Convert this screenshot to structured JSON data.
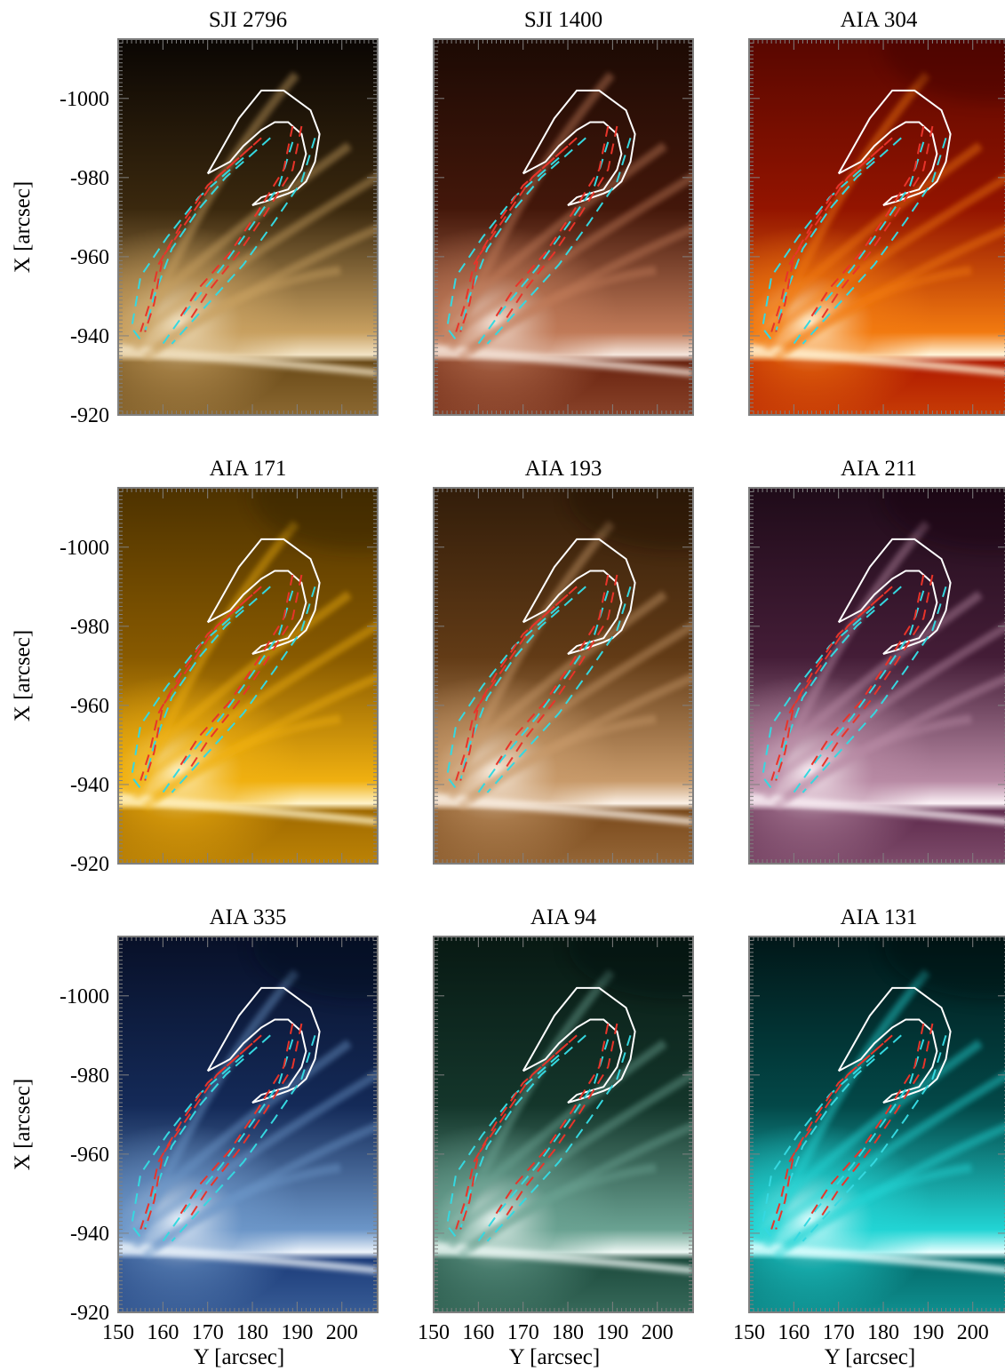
{
  "figure": {
    "panels": [
      {
        "title": "SJI 2796",
        "palette": [
          "#0a0603",
          "#6a4a18",
          "#c8a060",
          "#f2e3c4"
        ],
        "floor": 0.0
      },
      {
        "title": "SJI 1400",
        "palette": [
          "#1c0a04",
          "#6a2410",
          "#c07a58",
          "#f5e6dc"
        ],
        "floor": 0.0
      },
      {
        "title": "AIA 304",
        "palette": [
          "#3a0000",
          "#b01a00",
          "#f27a10",
          "#fff4d8"
        ],
        "floor": 0.25
      },
      {
        "title": "AIA 171",
        "palette": [
          "#2a1a00",
          "#a06a00",
          "#f0b010",
          "#fff3c8"
        ],
        "floor": 0.3
      },
      {
        "title": "AIA 193",
        "palette": [
          "#1a0e04",
          "#7a4a1c",
          "#c89a6a",
          "#fbf1e6"
        ],
        "floor": 0.25
      },
      {
        "title": "AIA 211",
        "palette": [
          "#140610",
          "#5e2a4c",
          "#b88aa4",
          "#fbf1f6"
        ],
        "floor": 0.15
      },
      {
        "title": "AIA 335",
        "palette": [
          "#04081a",
          "#1c3c7a",
          "#6c96c8",
          "#eef4fb"
        ],
        "floor": 0.15
      },
      {
        "title": "AIA 94",
        "palette": [
          "#04100c",
          "#1c4a3c",
          "#6aa292",
          "#eef8f4"
        ],
        "floor": 0.15
      },
      {
        "title": "AIA 131",
        "palette": [
          "#00080a",
          "#046a6a",
          "#22d4d4",
          "#e6ffff"
        ],
        "floor": 0.15
      }
    ],
    "y_axis_title": "X [arcsec]",
    "x_axis_title": "Y [arcsec]",
    "y_ticks": [
      "-1000",
      "-980",
      "-960",
      "-940",
      "-920"
    ],
    "x_ticks": [
      "150",
      "160",
      "170",
      "180",
      "190",
      "200"
    ],
    "colors": {
      "loop_outline": "#ffffff",
      "inner_dashed": "#e8342a",
      "outer_dashed": "#35d8e0",
      "frame": "#808080"
    }
  },
  "chart_data": {
    "type": "image-grid",
    "rows": 3,
    "cols": 3,
    "xlabel": "Y [arcsec]",
    "ylabel": "X [arcsec]",
    "xlim": [
      150,
      208
    ],
    "ylim": [
      -1015,
      -920
    ],
    "x_ticks": [
      150,
      160,
      170,
      180,
      190,
      200
    ],
    "y_ticks": [
      -1000,
      -980,
      -960,
      -940,
      -920
    ],
    "overlays": {
      "loop_outline": [
        [
          170,
          -981
        ],
        [
          172,
          -985
        ],
        [
          177,
          -995
        ],
        [
          182,
          -1002
        ],
        [
          187,
          -1002
        ],
        [
          193,
          -997
        ],
        [
          195,
          -991
        ],
        [
          194,
          -984
        ],
        [
          192,
          -979
        ],
        [
          190,
          -977
        ],
        [
          188,
          -976
        ],
        [
          183,
          -974
        ],
        [
          180,
          -973
        ],
        [
          182,
          -975
        ],
        [
          188,
          -977
        ],
        [
          191,
          -982
        ],
        [
          192,
          -986
        ],
        [
          191,
          -991
        ],
        [
          188,
          -994
        ],
        [
          185,
          -994
        ],
        [
          182,
          -992
        ],
        [
          178,
          -988
        ],
        [
          175,
          -984
        ],
        [
          170,
          -981
        ]
      ],
      "left_leg": {
        "cyan": [
          [
            [
              178,
              -985
            ],
            [
              168,
              -975
            ],
            [
              161,
              -965
            ],
            [
              155,
              -955
            ],
            [
              153,
              -942
            ],
            [
              155,
              -939
            ]
          ],
          [
            [
              184,
              -990
            ],
            [
              174,
              -980
            ],
            [
              168,
              -972
            ],
            [
              162,
              -962
            ],
            [
              158,
              -950
            ],
            [
              156,
              -941
            ]
          ]
        ],
        "red": [
          [
            [
              180,
              -988
            ],
            [
              170,
              -978
            ],
            [
              164,
              -968
            ],
            [
              159,
              -958
            ],
            [
              157,
              -948
            ],
            [
              155,
              -941
            ]
          ],
          [
            [
              182,
              -990
            ],
            [
              172,
              -980
            ],
            [
              166,
              -970
            ],
            [
              160,
              -960
            ],
            [
              158,
              -948
            ],
            [
              156,
              -941
            ]
          ]
        ]
      },
      "right_leg": {
        "cyan": [
          [
            [
              189,
              -989
            ],
            [
              186,
              -978
            ],
            [
              180,
              -968
            ],
            [
              173,
              -957
            ],
            [
              165,
              -946
            ],
            [
              160,
              -938
            ]
          ],
          [
            [
              194,
              -990
            ],
            [
              191,
              -979
            ],
            [
              185,
              -969
            ],
            [
              178,
              -958
            ],
            [
              170,
              -948
            ],
            [
              162,
              -938
            ]
          ]
        ],
        "red": [
          [
            [
              189,
              -993
            ],
            [
              187,
              -982
            ],
            [
              181,
              -971
            ],
            [
              175,
              -961
            ],
            [
              168,
              -952
            ],
            [
              164,
              -945
            ]
          ],
          [
            [
              191,
              -993
            ],
            [
              189,
              -982
            ],
            [
              183,
              -971
            ],
            [
              177,
              -961
            ],
            [
              170,
              -951
            ],
            [
              166,
              -944
            ]
          ]
        ]
      }
    }
  }
}
